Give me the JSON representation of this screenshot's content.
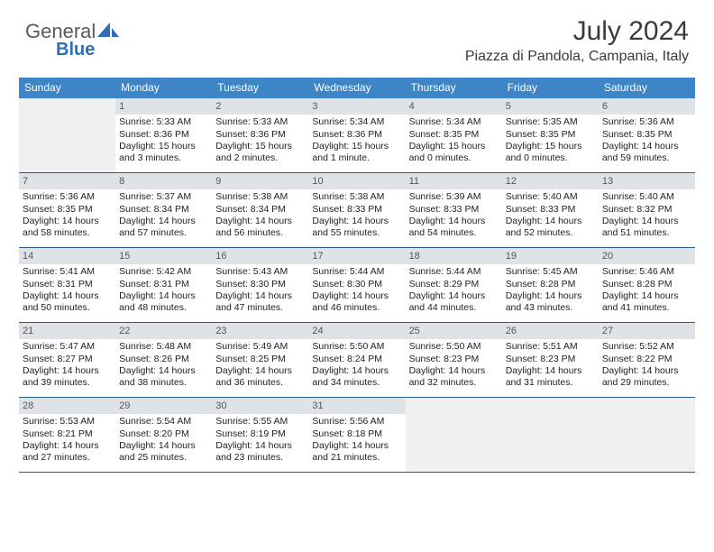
{
  "logo": {
    "text1": "General",
    "text2": "Blue",
    "color1": "#5a5a5a",
    "color2": "#2e6fb5"
  },
  "header": {
    "month": "July 2024",
    "location": "Piazza di Pandola, Campania, Italy"
  },
  "colors": {
    "header_bg": "#3d85c6",
    "header_fg": "#ffffff",
    "daynum_bg": "#dfe3e7",
    "blank_bg": "#eef0f2",
    "rule": "#2b5a8a",
    "text": "#222222"
  },
  "daynames": [
    "Sunday",
    "Monday",
    "Tuesday",
    "Wednesday",
    "Thursday",
    "Friday",
    "Saturday"
  ],
  "weeks": [
    [
      {
        "n": "",
        "blank": true
      },
      {
        "n": "1",
        "sunrise": "5:33 AM",
        "sunset": "8:36 PM",
        "daylight": "15 hours and 3 minutes."
      },
      {
        "n": "2",
        "sunrise": "5:33 AM",
        "sunset": "8:36 PM",
        "daylight": "15 hours and 2 minutes."
      },
      {
        "n": "3",
        "sunrise": "5:34 AM",
        "sunset": "8:36 PM",
        "daylight": "15 hours and 1 minute."
      },
      {
        "n": "4",
        "sunrise": "5:34 AM",
        "sunset": "8:35 PM",
        "daylight": "15 hours and 0 minutes."
      },
      {
        "n": "5",
        "sunrise": "5:35 AM",
        "sunset": "8:35 PM",
        "daylight": "15 hours and 0 minutes."
      },
      {
        "n": "6",
        "sunrise": "5:36 AM",
        "sunset": "8:35 PM",
        "daylight": "14 hours and 59 minutes."
      }
    ],
    [
      {
        "n": "7",
        "sunrise": "5:36 AM",
        "sunset": "8:35 PM",
        "daylight": "14 hours and 58 minutes."
      },
      {
        "n": "8",
        "sunrise": "5:37 AM",
        "sunset": "8:34 PM",
        "daylight": "14 hours and 57 minutes."
      },
      {
        "n": "9",
        "sunrise": "5:38 AM",
        "sunset": "8:34 PM",
        "daylight": "14 hours and 56 minutes."
      },
      {
        "n": "10",
        "sunrise": "5:38 AM",
        "sunset": "8:33 PM",
        "daylight": "14 hours and 55 minutes."
      },
      {
        "n": "11",
        "sunrise": "5:39 AM",
        "sunset": "8:33 PM",
        "daylight": "14 hours and 54 minutes."
      },
      {
        "n": "12",
        "sunrise": "5:40 AM",
        "sunset": "8:33 PM",
        "daylight": "14 hours and 52 minutes."
      },
      {
        "n": "13",
        "sunrise": "5:40 AM",
        "sunset": "8:32 PM",
        "daylight": "14 hours and 51 minutes."
      }
    ],
    [
      {
        "n": "14",
        "sunrise": "5:41 AM",
        "sunset": "8:31 PM",
        "daylight": "14 hours and 50 minutes."
      },
      {
        "n": "15",
        "sunrise": "5:42 AM",
        "sunset": "8:31 PM",
        "daylight": "14 hours and 48 minutes."
      },
      {
        "n": "16",
        "sunrise": "5:43 AM",
        "sunset": "8:30 PM",
        "daylight": "14 hours and 47 minutes."
      },
      {
        "n": "17",
        "sunrise": "5:44 AM",
        "sunset": "8:30 PM",
        "daylight": "14 hours and 46 minutes."
      },
      {
        "n": "18",
        "sunrise": "5:44 AM",
        "sunset": "8:29 PM",
        "daylight": "14 hours and 44 minutes."
      },
      {
        "n": "19",
        "sunrise": "5:45 AM",
        "sunset": "8:28 PM",
        "daylight": "14 hours and 43 minutes."
      },
      {
        "n": "20",
        "sunrise": "5:46 AM",
        "sunset": "8:28 PM",
        "daylight": "14 hours and 41 minutes."
      }
    ],
    [
      {
        "n": "21",
        "sunrise": "5:47 AM",
        "sunset": "8:27 PM",
        "daylight": "14 hours and 39 minutes."
      },
      {
        "n": "22",
        "sunrise": "5:48 AM",
        "sunset": "8:26 PM",
        "daylight": "14 hours and 38 minutes."
      },
      {
        "n": "23",
        "sunrise": "5:49 AM",
        "sunset": "8:25 PM",
        "daylight": "14 hours and 36 minutes."
      },
      {
        "n": "24",
        "sunrise": "5:50 AM",
        "sunset": "8:24 PM",
        "daylight": "14 hours and 34 minutes."
      },
      {
        "n": "25",
        "sunrise": "5:50 AM",
        "sunset": "8:23 PM",
        "daylight": "14 hours and 32 minutes."
      },
      {
        "n": "26",
        "sunrise": "5:51 AM",
        "sunset": "8:23 PM",
        "daylight": "14 hours and 31 minutes."
      },
      {
        "n": "27",
        "sunrise": "5:52 AM",
        "sunset": "8:22 PM",
        "daylight": "14 hours and 29 minutes."
      }
    ],
    [
      {
        "n": "28",
        "sunrise": "5:53 AM",
        "sunset": "8:21 PM",
        "daylight": "14 hours and 27 minutes."
      },
      {
        "n": "29",
        "sunrise": "5:54 AM",
        "sunset": "8:20 PM",
        "daylight": "14 hours and 25 minutes."
      },
      {
        "n": "30",
        "sunrise": "5:55 AM",
        "sunset": "8:19 PM",
        "daylight": "14 hours and 23 minutes."
      },
      {
        "n": "31",
        "sunrise": "5:56 AM",
        "sunset": "8:18 PM",
        "daylight": "14 hours and 21 minutes."
      },
      {
        "n": "",
        "blank": true
      },
      {
        "n": "",
        "blank": true
      },
      {
        "n": "",
        "blank": true
      }
    ]
  ],
  "labels": {
    "sunrise": "Sunrise:",
    "sunset": "Sunset:",
    "daylight": "Daylight:"
  }
}
